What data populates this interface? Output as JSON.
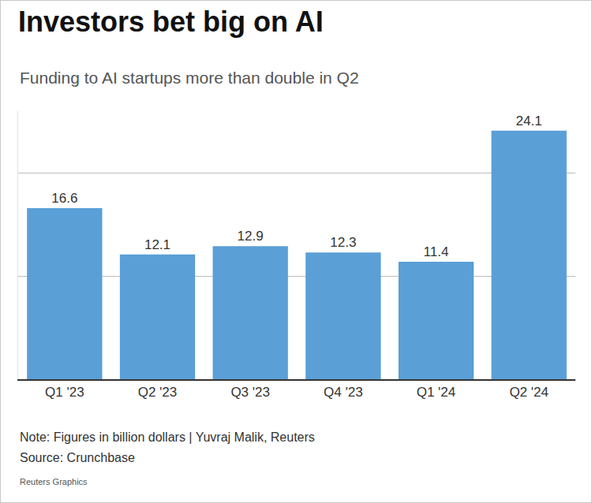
{
  "chart_data": {
    "type": "bar",
    "title": "Investors bet big on AI",
    "subtitle": "Funding to AI startups more than double in Q2",
    "categories": [
      "Q1 '23",
      "Q2 '23",
      "Q3 '23",
      "Q4 '23",
      "Q1 '24",
      "Q2 '24"
    ],
    "values": [
      16.6,
      12.1,
      12.9,
      12.3,
      11.4,
      24.1
    ],
    "color": "#5a9fd6",
    "ylim": [
      0,
      26
    ],
    "yticks": [
      0,
      10,
      20
    ],
    "grid": true,
    "data_labels": true,
    "tick_labels": "x",
    "note": "Note: Figures in billion dollars | Yuvraj Malik, Reuters",
    "source": "Source: Crunchbase",
    "credit": "Reuters Graphics"
  }
}
